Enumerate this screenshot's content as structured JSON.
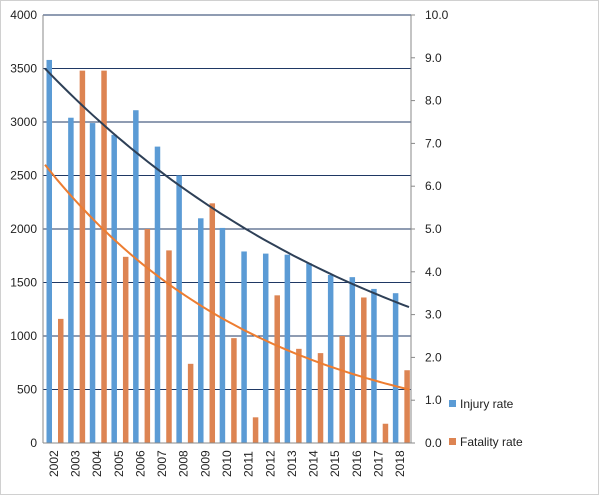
{
  "chart_data": {
    "type": "bar",
    "title": "",
    "xlabel": "",
    "ylabel": "",
    "categories": [
      "2002",
      "2003",
      "2004",
      "2005",
      "2006",
      "2007",
      "2008",
      "2009",
      "2010",
      "2011",
      "2012",
      "2013",
      "2014",
      "2015",
      "2016",
      "2017",
      "2018"
    ],
    "y_left": {
      "ylim": [
        0,
        4000
      ],
      "ticks": [
        "0",
        "500",
        "1000",
        "1500",
        "2000",
        "2500",
        "3000",
        "3500",
        "4000"
      ]
    },
    "y_right": {
      "ylim": [
        0,
        10
      ],
      "ticks": [
        "0.0",
        "1.0",
        "2.0",
        "3.0",
        "4.0",
        "5.0",
        "6.0",
        "7.0",
        "8.0",
        "9.0",
        "10.0"
      ]
    },
    "grid": "horizontal",
    "legend_position": "right",
    "series": [
      {
        "name": "Injury rate",
        "axis": "left",
        "color": "#5b9bd5",
        "values": [
          3580,
          3040,
          2990,
          2880,
          3110,
          2770,
          2500,
          2100,
          2010,
          1790,
          1770,
          1760,
          1680,
          1570,
          1550,
          1440,
          1400
        ]
      },
      {
        "name": "Fatality rate",
        "axis": "right",
        "color": "#dd8452",
        "values": [
          2.9,
          8.7,
          8.7,
          4.35,
          5.0,
          4.5,
          1.85,
          5.6,
          2.45,
          0.6,
          3.45,
          2.2,
          2.1,
          2.5,
          3.4,
          0.45,
          1.7
        ]
      }
    ],
    "trendlines": [
      {
        "series": "Injury rate",
        "axis": "left",
        "color": "#2e4057",
        "start": 3500,
        "end": 1270
      },
      {
        "series": "Fatality rate",
        "axis": "right",
        "color": "#ed7d31",
        "start": 6.5,
        "end": 1.25
      }
    ]
  }
}
